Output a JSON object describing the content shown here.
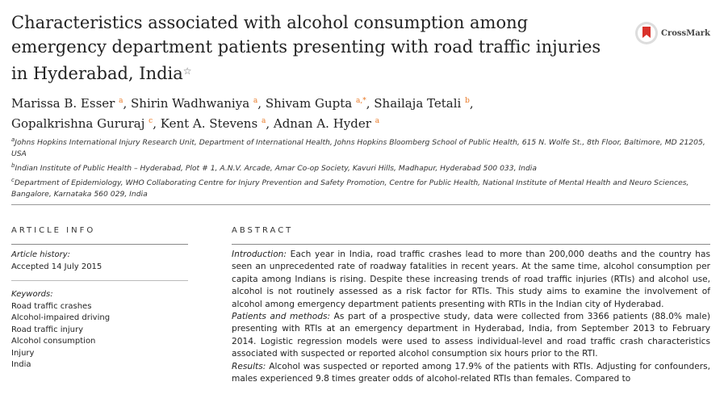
{
  "title": "Characteristics associated with alcohol consumption among emergency department patients presenting with road traffic injuries in Hyderabad, India",
  "title_mark": "☆",
  "crossmark": "CrossMark",
  "authors": [
    {
      "name": "Marissa B. Esser",
      "sup": "a"
    },
    {
      "name": "Shirin Wadhwaniya",
      "sup": "a"
    },
    {
      "name": "Shivam Gupta",
      "sup": "a,*"
    },
    {
      "name": "Shailaja Tetali",
      "sup": "b"
    },
    {
      "name": "Gopalkrishna Gururaj",
      "sup": "c"
    },
    {
      "name": "Kent A. Stevens",
      "sup": "a"
    },
    {
      "name": "Adnan A. Hyder",
      "sup": "a"
    }
  ],
  "affiliations": [
    {
      "sup": "a",
      "text": "Johns Hopkins International Injury Research Unit, Department of International Health, Johns Hopkins Bloomberg School of Public Health, 615 N. Wolfe St., 8th Floor, Baltimore, MD 21205, USA"
    },
    {
      "sup": "b",
      "text": "Indian Institute of Public Health – Hyderabad, Plot # 1, A.N.V. Arcade, Amar Co-op Society, Kavuri Hills, Madhapur, Hyderabad 500 033, India"
    },
    {
      "sup": "c",
      "text": "Department of Epidemiology, WHO Collaborating Centre for Injury Prevention and Safety Promotion, Centre for Public Health, National Institute of Mental Health and Neuro Sciences, Bangalore, Karnataka 560 029, India"
    }
  ],
  "article_info": {
    "heading": "ARTICLE INFO",
    "history_label": "Article history:",
    "accepted": "Accepted 14 July 2015",
    "keywords_label": "Keywords:",
    "keywords": [
      "Road traffic crashes",
      "Alcohol-impaired driving",
      "Road traffic injury",
      "Alcohol consumption",
      "Injury",
      "India"
    ]
  },
  "abstract": {
    "heading": "ABSTRACT",
    "sections": [
      {
        "label": "Introduction:",
        "text": " Each year in India, road traffic crashes lead to more than 200,000 deaths and the country has seen an unprecedented rate of roadway fatalities in recent years. At the same time, alcohol consumption per capita among Indians is rising. Despite these increasing trends of road traffic injuries (RTIs) and alcohol use, alcohol is not routinely assessed as a risk factor for RTIs. This study aims to examine the involvement of alcohol among emergency department patients presenting with RTIs in the Indian city of Hyderabad."
      },
      {
        "label": "Patients and methods:",
        "text": " As part of a prospective study, data were collected from 3366 patients (88.0% male) presenting with RTIs at an emergency department in Hyderabad, India, from September 2013 to February 2014. Logistic regression models were used to assess individual-level and road traffic crash characteristics associated with suspected or reported alcohol consumption six hours prior to the RTI."
      },
      {
        "label": "Results:",
        "text": " Alcohol was suspected or reported among 17.9% of the patients with RTIs. Adjusting for confounders, males experienced 9.8 times greater odds of alcohol-related RTIs than females. Compared to"
      }
    ]
  }
}
